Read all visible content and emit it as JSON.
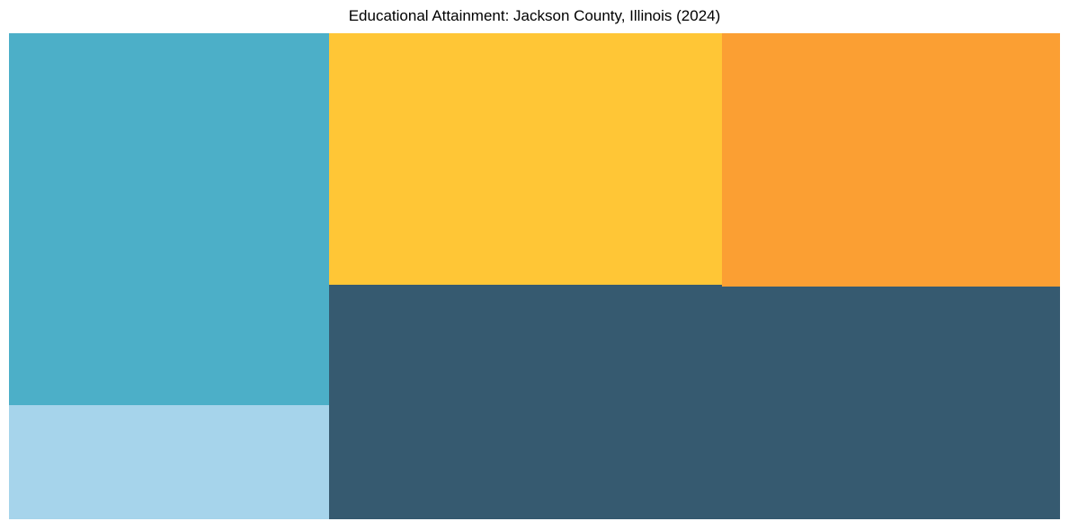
{
  "header": {
    "title": "Educational Attainment: Jackson County, Illinois (2024)"
  },
  "chart_data": {
    "type": "treemap",
    "title": "Educational Attainment: Jackson County, Illinois (2024)",
    "legend": "none",
    "data_labels_visible": false,
    "title_color": "#000000",
    "background_color": "#ffffff",
    "tiles": [
      {
        "id": "dark-slate",
        "label": "",
        "color": "#365A70",
        "share_pct_est": 33.3,
        "position": "bottom-right",
        "x_pct": 30.45,
        "y_pct": 51.75,
        "w_pct": 69.55,
        "h_pct": 48.25
      },
      {
        "id": "teal",
        "label": "",
        "color": "#4CAFC8",
        "share_pct_est": 23.3,
        "position": "top-left",
        "x_pct": 0,
        "y_pct": 0,
        "w_pct": 30.45,
        "h_pct": 76.55
      },
      {
        "id": "yellow",
        "label": "",
        "color": "#FFC636",
        "share_pct_est": 19.4,
        "position": "top-middle",
        "x_pct": 30.45,
        "y_pct": 0,
        "w_pct": 37.4,
        "h_pct": 51.75
      },
      {
        "id": "orange",
        "label": "",
        "color": "#FB9F33",
        "share_pct_est": 16.8,
        "position": "top-right",
        "x_pct": 67.85,
        "y_pct": 0,
        "w_pct": 32.15,
        "h_pct": 52.15
      },
      {
        "id": "light-blue",
        "label": "",
        "color": "#A6D4EB",
        "share_pct_est": 7.2,
        "position": "bottom-left",
        "x_pct": 0,
        "y_pct": 76.55,
        "w_pct": 30.45,
        "h_pct": 23.45
      }
    ]
  }
}
